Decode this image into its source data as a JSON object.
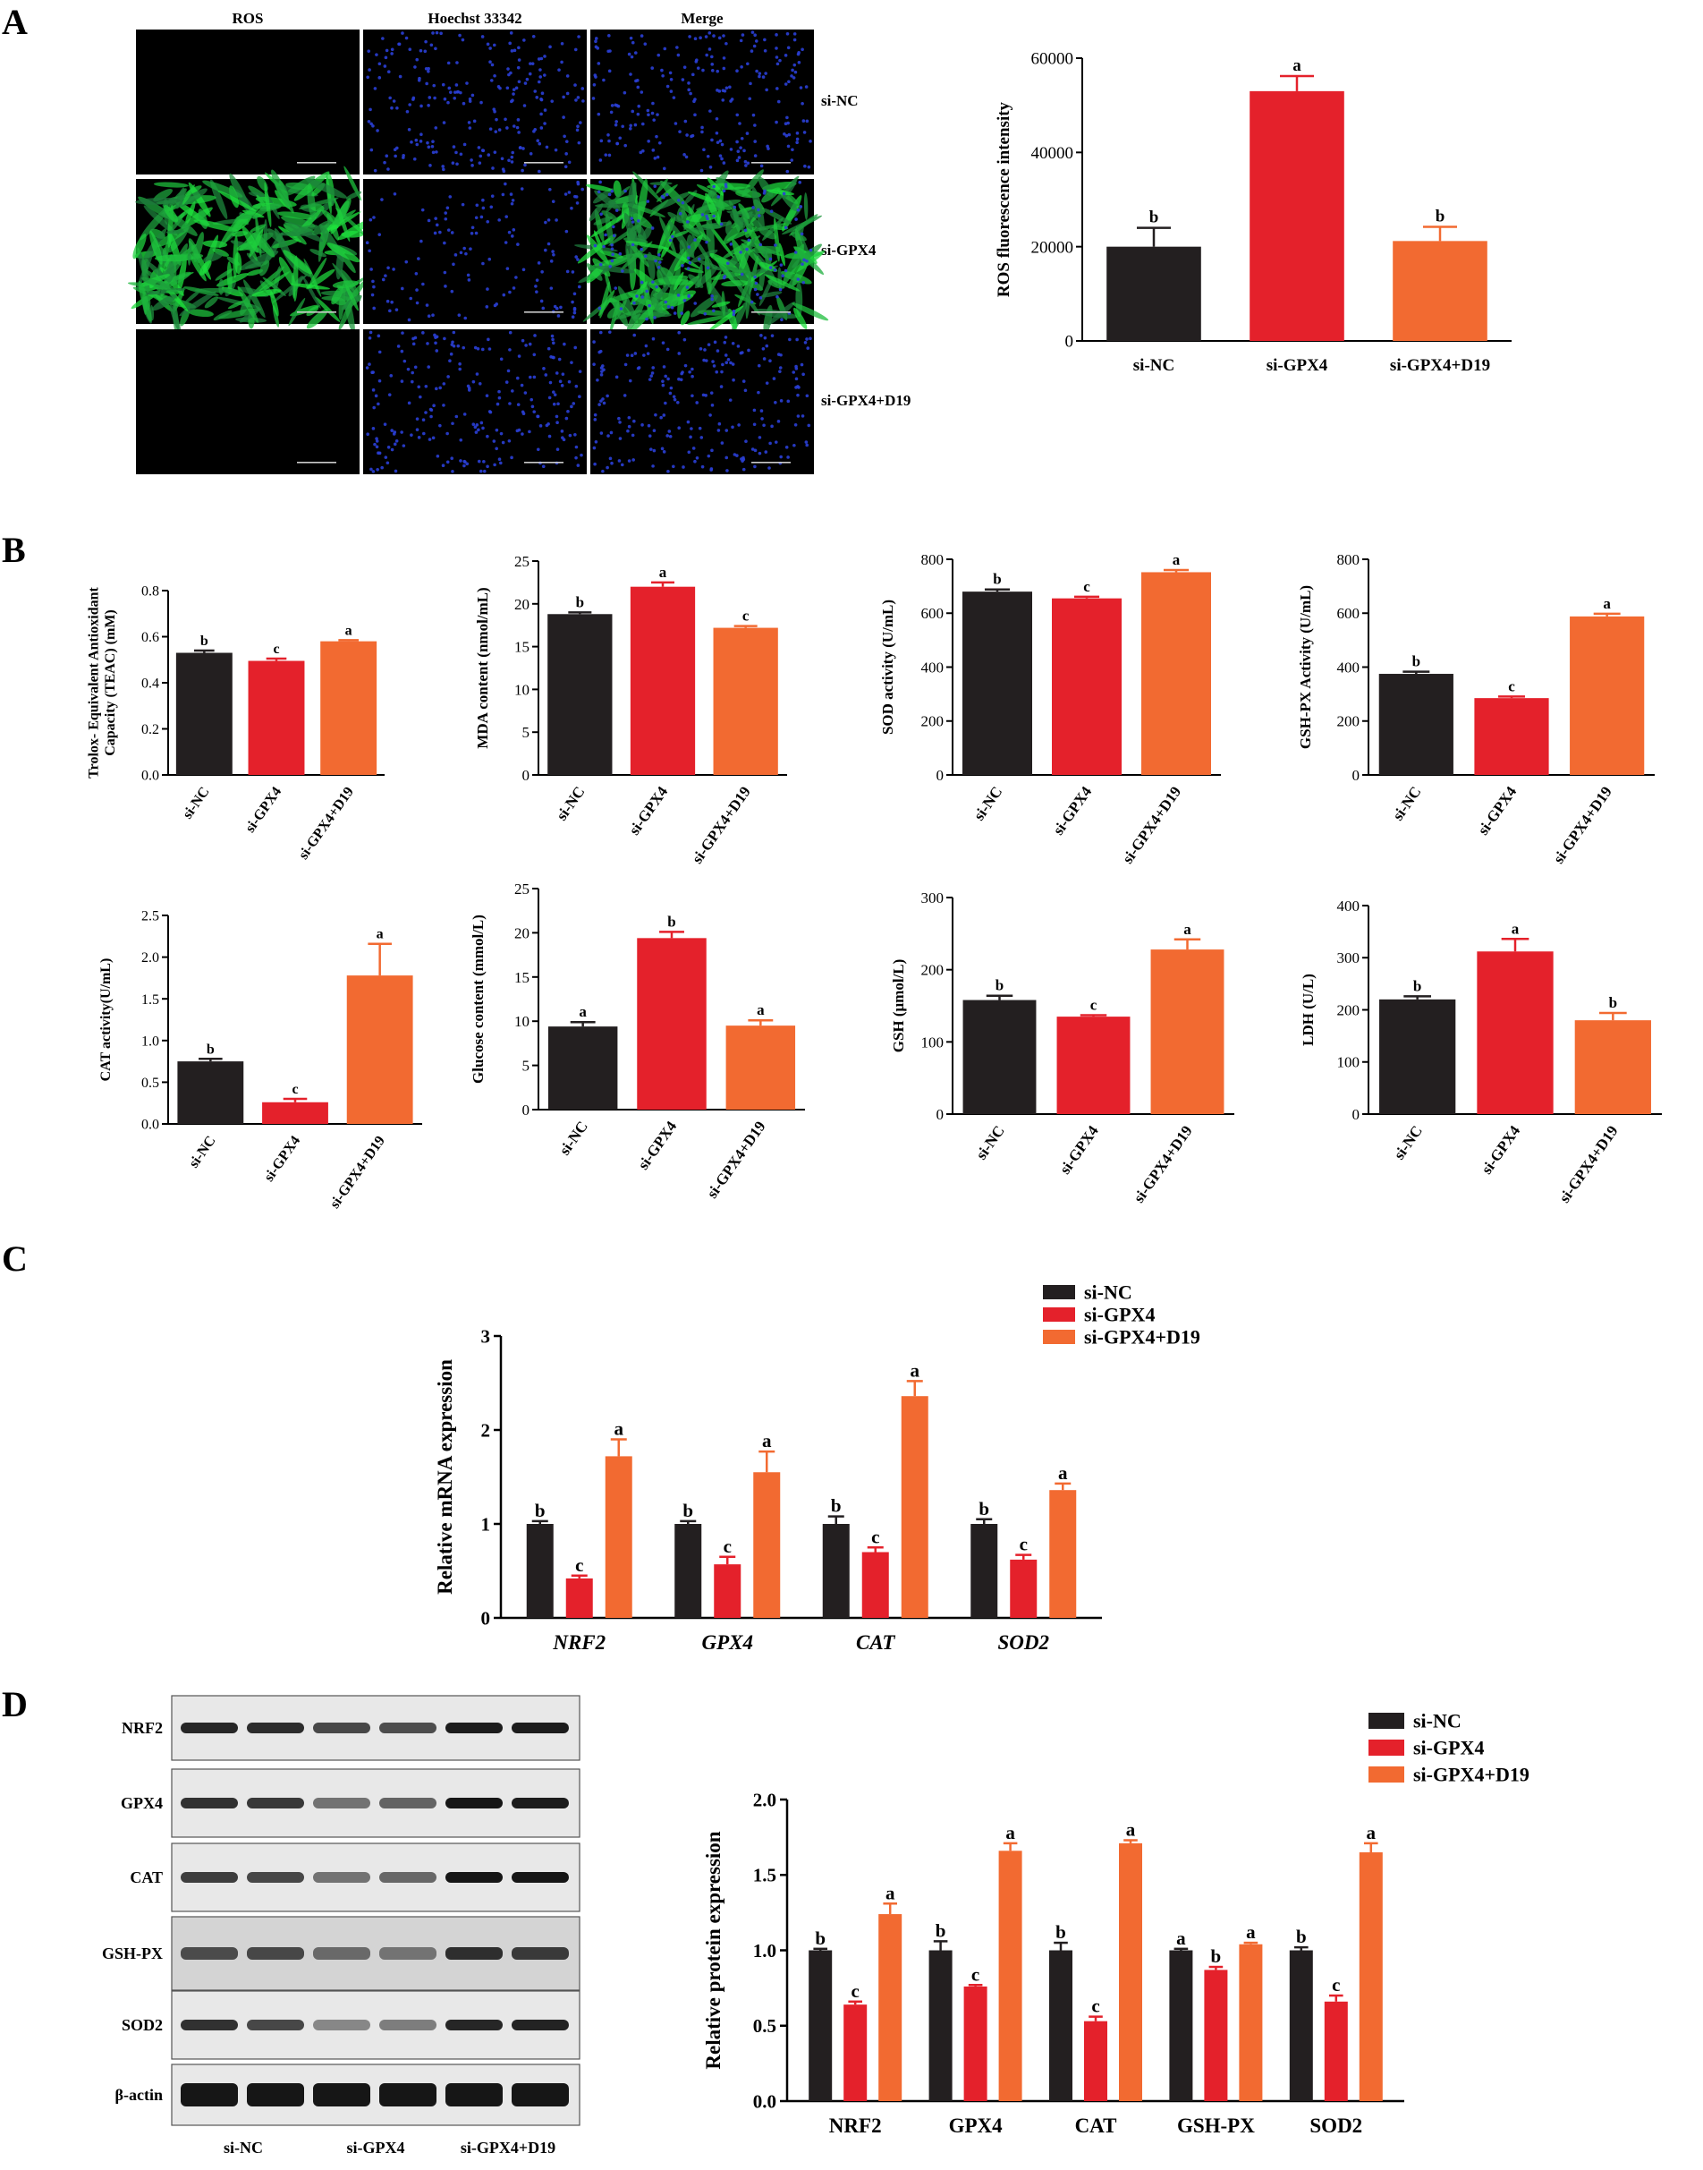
{
  "colors": {
    "si_NC": "#231f20",
    "si_GPX4": "#e4212b",
    "si_GPX4_D19": "#f26a31",
    "microscopy_bg": "#000000",
    "hoechst": "#2a3fd6",
    "ros": "#2fbf4a"
  },
  "panels": {
    "A": "A",
    "B": "B",
    "C": "C",
    "D": "D"
  },
  "microscopy": {
    "columns": [
      "ROS",
      "Hoechst 33342",
      "Merge"
    ],
    "rows": [
      "si-NC",
      "si-GPX4",
      "si-GPX4+D19"
    ]
  },
  "western_blot": {
    "rows": [
      "NRF2",
      "GPX4",
      "CAT",
      "GSH-PX",
      "SOD2",
      "β-actin"
    ],
    "groups": [
      "si-NC",
      "si-GPX4",
      "si-GPX4+D19"
    ]
  },
  "chart_data": [
    {
      "id": "ros",
      "type": "bar",
      "categories": [
        "si-NC",
        "si-GPX4",
        "si-GPX4+D19"
      ],
      "values": [
        20000,
        53000,
        21200
      ],
      "errors": [
        4000,
        3200,
        3000
      ],
      "letters": [
        "b",
        "a",
        "b"
      ],
      "ylabel": "ROS fluorescence intensity",
      "ylim": [
        0,
        60000
      ],
      "yticks": [
        "0",
        "20000",
        "40000",
        "60000"
      ]
    },
    {
      "id": "teac",
      "type": "bar",
      "categories": [
        "si-NC",
        "si-GPX4",
        "si-GPX4+D19"
      ],
      "values": [
        0.53,
        0.495,
        0.58
      ],
      "errors": [
        0.01,
        0.01,
        0.005
      ],
      "letters": [
        "b",
        "c",
        "a"
      ],
      "ylabel": "Trolox- Equivalent Antioxidant Capacity (TEAC) (mM)",
      "ylabel_lines": [
        "Trolox- Equivalent Antioxidant",
        "Capacity (TEAC) (mM)"
      ],
      "ylim": [
        0,
        0.8
      ],
      "yticks": [
        "0.0",
        "0.2",
        "0.4",
        "0.6",
        "0.8"
      ]
    },
    {
      "id": "mda",
      "type": "bar",
      "categories": [
        "si-NC",
        "si-GPX4",
        "si-GPX4+D19"
      ],
      "values": [
        18.8,
        22.0,
        17.2
      ],
      "errors": [
        0.2,
        0.5,
        0.2
      ],
      "letters": [
        "b",
        "a",
        "c"
      ],
      "ylabel": "MDA content (nmol/mL)",
      "ylim": [
        0,
        25
      ],
      "yticks": [
        "0",
        "5",
        "10",
        "15",
        "20",
        "25"
      ]
    },
    {
      "id": "sod",
      "type": "bar",
      "categories": [
        "si-NC",
        "si-GPX4",
        "si-GPX4+D19"
      ],
      "values": [
        680,
        655,
        752
      ],
      "errors": [
        8,
        6,
        8
      ],
      "letters": [
        "b",
        "c",
        "a"
      ],
      "ylabel": "SOD activity (U/mL)",
      "ylim": [
        0,
        800
      ],
      "yticks": [
        "0",
        "200",
        "400",
        "600",
        "800"
      ]
    },
    {
      "id": "gshpx",
      "type": "bar",
      "categories": [
        "si-NC",
        "si-GPX4",
        "si-GPX4+D19"
      ],
      "values": [
        375,
        285,
        588
      ],
      "errors": [
        8,
        6,
        10
      ],
      "letters": [
        "b",
        "c",
        "a"
      ],
      "ylabel": "GSH-PX Activity (U/mL)",
      "ylim": [
        0,
        800
      ],
      "yticks": [
        "0",
        "200",
        "400",
        "600",
        "800"
      ]
    },
    {
      "id": "cat",
      "type": "bar",
      "categories": [
        "si-NC",
        "si-GPX4",
        "si-GPX4+D19"
      ],
      "values": [
        0.75,
        0.26,
        1.78
      ],
      "errors": [
        0.03,
        0.04,
        0.38
      ],
      "letters": [
        "b",
        "c",
        "a"
      ],
      "ylabel": "CAT activity(U/mL)",
      "ylim": [
        0,
        2.5
      ],
      "yticks": [
        "0.0",
        "0.5",
        "1.0",
        "1.5",
        "2.0",
        "2.5"
      ]
    },
    {
      "id": "glucose",
      "type": "bar",
      "categories": [
        "si-NC",
        "si-GPX4",
        "si-GPX4+D19"
      ],
      "values": [
        9.4,
        19.4,
        9.5
      ],
      "errors": [
        0.5,
        0.7,
        0.6
      ],
      "letters": [
        "a",
        "b",
        "a"
      ],
      "ylabel": "Glucose content (mmol/L)",
      "ylim": [
        0,
        25
      ],
      "yticks": [
        "0",
        "5",
        "10",
        "15",
        "20",
        "25"
      ]
    },
    {
      "id": "gsh",
      "type": "bar",
      "categories": [
        "si-NC",
        "si-GPX4",
        "si-GPX4+D19"
      ],
      "values": [
        158,
        135,
        228
      ],
      "errors": [
        6,
        2,
        14
      ],
      "letters": [
        "b",
        "c",
        "a"
      ],
      "ylabel": "GSH (μmol/L)",
      "ylim": [
        0,
        300
      ],
      "yticks": [
        "0",
        "100",
        "200",
        "300"
      ]
    },
    {
      "id": "ldh",
      "type": "bar",
      "categories": [
        "si-NC",
        "si-GPX4",
        "si-GPX4+D19"
      ],
      "values": [
        220,
        312,
        180
      ],
      "errors": [
        6,
        24,
        14
      ],
      "letters": [
        "b",
        "a",
        "b"
      ],
      "ylabel": "LDH (U/L)",
      "ylim": [
        0,
        400
      ],
      "yticks": [
        "0",
        "100",
        "200",
        "300",
        "400"
      ]
    },
    {
      "id": "mrna",
      "type": "bar",
      "categories": [
        "NRF2",
        "GPX4",
        "CAT",
        "SOD2"
      ],
      "series": [
        {
          "name": "si-NC",
          "values": [
            1.0,
            1.0,
            1.0,
            1.0
          ],
          "errors": [
            0.03,
            0.03,
            0.08,
            0.05
          ],
          "letters": [
            "b",
            "b",
            "b",
            "b"
          ]
        },
        {
          "name": "si-GPX4",
          "values": [
            0.42,
            0.57,
            0.7,
            0.62
          ],
          "errors": [
            0.03,
            0.08,
            0.05,
            0.05
          ],
          "letters": [
            "c",
            "c",
            "c",
            "c"
          ]
        },
        {
          "name": "si-GPX4+D19",
          "values": [
            1.72,
            1.55,
            2.36,
            1.36
          ],
          "errors": [
            0.18,
            0.22,
            0.16,
            0.07
          ],
          "letters": [
            "a",
            "a",
            "a",
            "a"
          ]
        }
      ],
      "ylabel": "Relative mRNA expression",
      "ylim": [
        0,
        3
      ],
      "yticks": [
        "0",
        "1",
        "2",
        "3"
      ],
      "legend": "top-right"
    },
    {
      "id": "protein",
      "type": "bar",
      "categories": [
        "NRF2",
        "GPX4",
        "CAT",
        "GSH-PX",
        "SOD2"
      ],
      "series": [
        {
          "name": "si-NC",
          "values": [
            1.0,
            1.0,
            1.0,
            1.0,
            1.0
          ],
          "errors": [
            0.01,
            0.06,
            0.05,
            0.01,
            0.02
          ],
          "letters": [
            "b",
            "b",
            "b",
            "a",
            "b"
          ]
        },
        {
          "name": "si-GPX4",
          "values": [
            0.64,
            0.76,
            0.53,
            0.87,
            0.66
          ],
          "errors": [
            0.02,
            0.01,
            0.03,
            0.02,
            0.04
          ],
          "letters": [
            "c",
            "c",
            "c",
            "b",
            "c"
          ]
        },
        {
          "name": "si-GPX4+D19",
          "values": [
            1.24,
            1.66,
            1.71,
            1.04,
            1.65
          ],
          "errors": [
            0.07,
            0.05,
            0.02,
            0.01,
            0.06
          ],
          "letters": [
            "a",
            "a",
            "a",
            "a",
            "a"
          ]
        }
      ],
      "ylabel": "Relative protein expression",
      "ylim": [
        0,
        2.0
      ],
      "yticks": [
        "0.0",
        "0.5",
        "1.0",
        "1.5",
        "2.0"
      ],
      "legend": "top-right"
    }
  ]
}
